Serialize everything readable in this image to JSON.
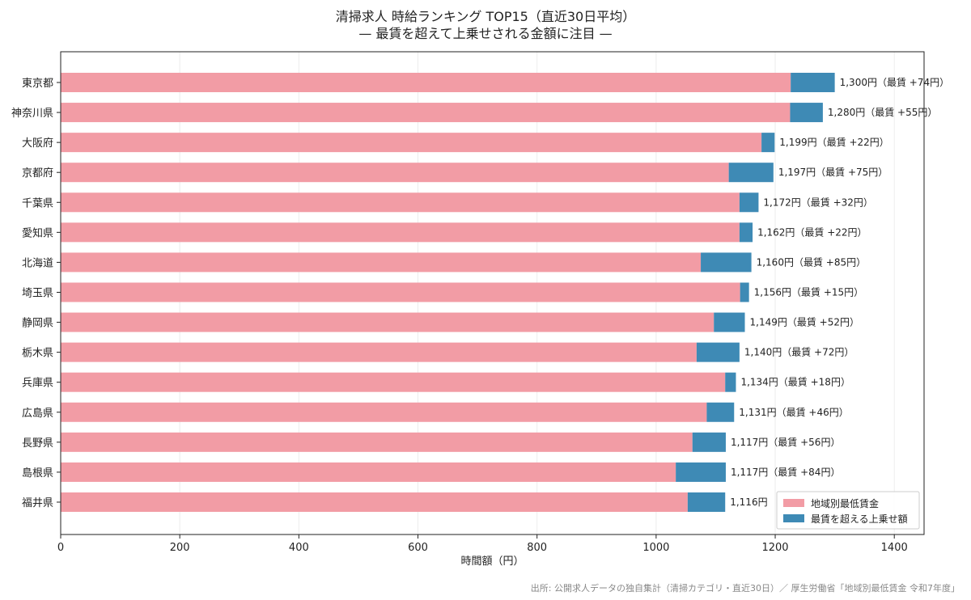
{
  "chart_data": {
    "type": "bar",
    "orientation": "horizontal",
    "stacked": true,
    "title": "清掃求人 時給ランキング TOP15（直近30日平均）",
    "subtitle": "— 最賃を超えて上乗せされる金額に注目 —",
    "xlabel": "時間額（円）",
    "ylabel": "",
    "xlim": [
      0,
      1450
    ],
    "xticks": [
      0,
      200,
      400,
      600,
      800,
      1000,
      1200,
      1400
    ],
    "grid": true,
    "legend_position": "bottom-right",
    "categories": [
      "東京都",
      "神奈川県",
      "大阪府",
      "京都府",
      "千葉県",
      "愛知県",
      "北海道",
      "埼玉県",
      "静岡県",
      "栃木県",
      "兵庫県",
      "広島県",
      "長野県",
      "島根県",
      "福井県"
    ],
    "series": [
      {
        "name": "地域別最低賃金",
        "color": "#f29ca5",
        "values": [
          1226,
          1225,
          1177,
          1122,
          1140,
          1140,
          1075,
          1141,
          1097,
          1068,
          1116,
          1085,
          1061,
          1033,
          1053
        ]
      },
      {
        "name": "最賃を超える上乗せ額",
        "color": "#3e8ab5",
        "values": [
          74,
          55,
          22,
          75,
          32,
          22,
          85,
          15,
          52,
          72,
          18,
          46,
          56,
          84,
          63
        ]
      }
    ],
    "data_labels": [
      "1,300円（最賃 +74円）",
      "1,280円（最賃 +55円）",
      "1,199円（最賃 +22円）",
      "1,197円（最賃 +75円）",
      "1,172円（最賃 +32円）",
      "1,162円（最賃 +22円）",
      "1,160円（最賃 +85円）",
      "1,156円（最賃 +15円）",
      "1,149円（最賃 +52円）",
      "1,140円（最賃 +72円）",
      "1,134円（最賃 +18円）",
      "1,131円（最賃 +46円）",
      "1,117円（最賃 +56円）",
      "1,117円（最賃 +84円）",
      "1,116円"
    ],
    "source": "出所: 公開求人データの独自集計（清掃カテゴリ・直近30日）／ 厚生労働省「地域別最低賃金 令和7年度」"
  }
}
